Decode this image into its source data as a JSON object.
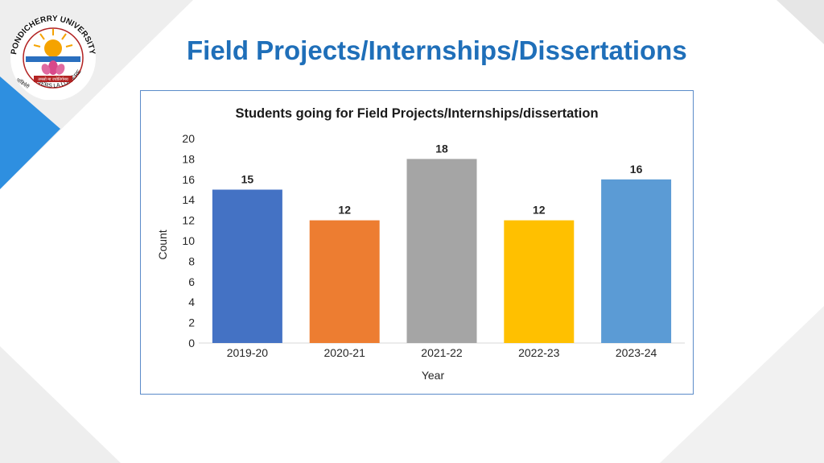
{
  "slide": {
    "title": "Field Projects/Internships/Dissertations",
    "logo": {
      "top_text": "PONDICHERRY UNIVERSITY",
      "bottom_text": "VERS LA LUMIÈRE",
      "left_text": "पांडिचेरी",
      "motto_band": "तमसो मा ज्योतिर्गमय"
    }
  },
  "colors": {
    "title": "#1f6fb9",
    "frame": "#5b8bc9",
    "deco_blue": "#2e8fe0",
    "deco_gray": "#e8e8e8"
  },
  "chart_data": {
    "type": "bar",
    "title": "Students going for Field Projects/Internships/dissertation",
    "xlabel": "Year",
    "ylabel": "Count",
    "categories": [
      "2019-20",
      "2020-21",
      "2021-22",
      "2022-23",
      "2023-24"
    ],
    "values": [
      15,
      12,
      18,
      12,
      16
    ],
    "colors": [
      "#4472c4",
      "#ed7d31",
      "#a5a5a5",
      "#ffc000",
      "#5b9bd5"
    ],
    "ylim": [
      0,
      20
    ],
    "yticks": [
      0,
      2,
      4,
      6,
      8,
      10,
      12,
      14,
      16,
      18,
      20
    ],
    "grid": false,
    "legend": "none"
  }
}
